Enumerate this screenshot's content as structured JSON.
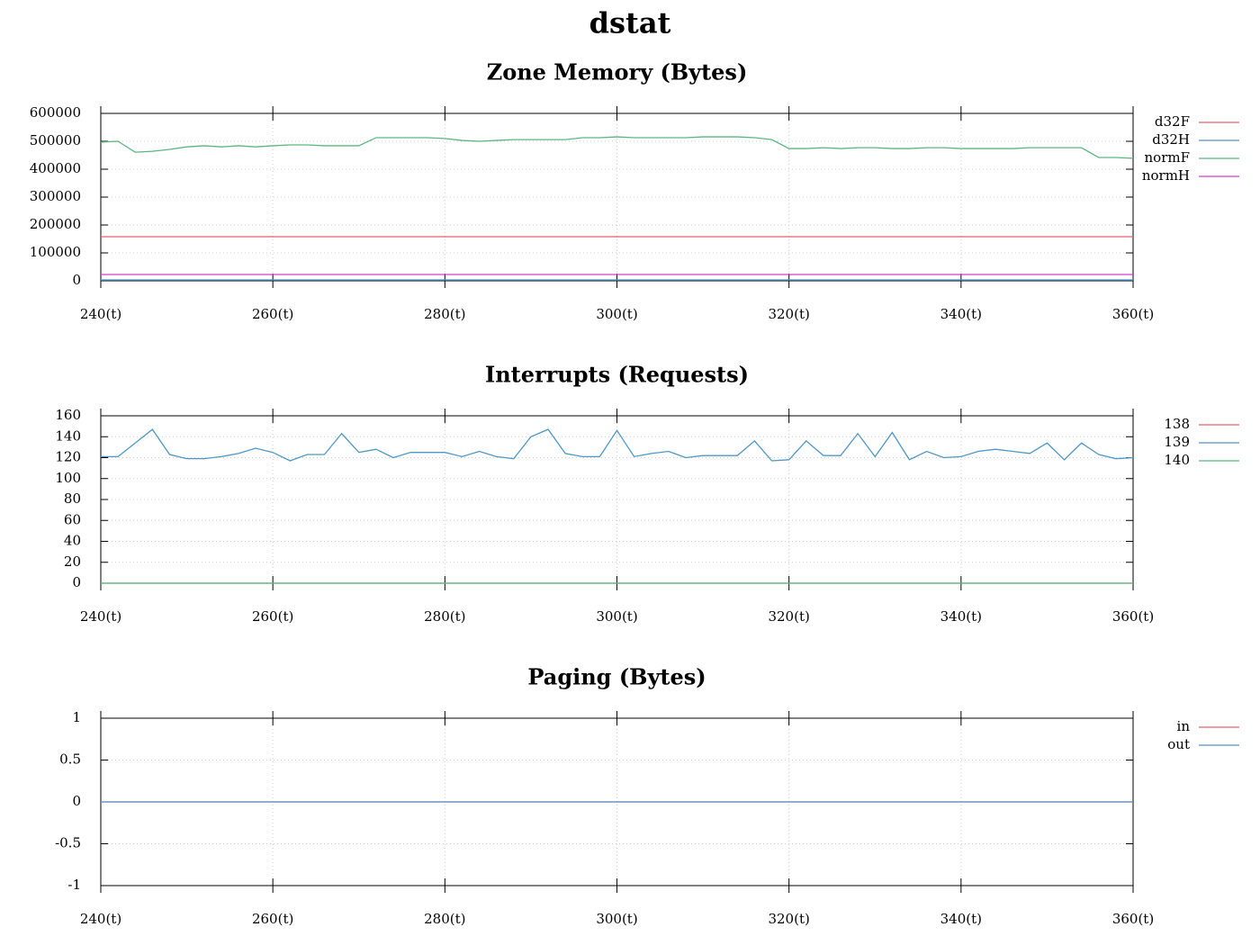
{
  "title": "dstat",
  "chart_data": [
    {
      "type": "line",
      "title": "Zone Memory (Bytes)",
      "x": [
        240,
        242,
        244,
        246,
        248,
        250,
        252,
        254,
        256,
        258,
        260,
        262,
        264,
        266,
        268,
        270,
        272,
        274,
        276,
        278,
        280,
        282,
        284,
        286,
        288,
        290,
        292,
        294,
        296,
        298,
        300,
        302,
        304,
        306,
        308,
        310,
        312,
        314,
        316,
        318,
        320,
        322,
        324,
        326,
        328,
        330,
        332,
        334,
        336,
        338,
        340,
        342,
        344,
        346,
        348,
        350,
        352,
        354,
        356,
        358,
        360
      ],
      "xlim": [
        240,
        360
      ],
      "xticks": [
        {
          "value": 240,
          "label": "240(t)"
        },
        {
          "value": 260,
          "label": "260(t)"
        },
        {
          "value": 280,
          "label": "280(t)"
        },
        {
          "value": 300,
          "label": "300(t)"
        },
        {
          "value": 320,
          "label": "320(t)"
        },
        {
          "value": 340,
          "label": "340(t)"
        },
        {
          "value": 360,
          "label": "360(t)"
        }
      ],
      "ylim": [
        0,
        600000
      ],
      "yticks": [
        0,
        100000,
        200000,
        300000,
        400000,
        500000,
        600000
      ],
      "grid": true,
      "legend": "right",
      "series": [
        {
          "name": "d32F",
          "color": "#e0606e",
          "values": [
            158000,
            158000,
            158000,
            158000,
            158000,
            158000,
            158000,
            158000,
            158000,
            158000,
            158000,
            158000,
            158000,
            158000,
            158000,
            158000,
            158000,
            158000,
            158000,
            158000,
            158000,
            158000,
            158000,
            158000,
            158000,
            158000,
            158000,
            158000,
            158000,
            158000,
            158000,
            158000,
            158000,
            158000,
            158000,
            158000,
            158000,
            158000,
            158000,
            158000,
            158000,
            158000,
            158000,
            158000,
            158000,
            158000,
            158000,
            158000,
            158000,
            158000,
            158000,
            158000,
            158000,
            158000,
            158000,
            158000,
            158000,
            158000,
            158000,
            158000,
            158000
          ]
        },
        {
          "name": "d32H",
          "color": "#4f97c6",
          "values": [
            3000,
            3000,
            3000,
            3000,
            3000,
            3000,
            3000,
            3000,
            3000,
            3000,
            3000,
            3000,
            3000,
            3000,
            3000,
            3000,
            3000,
            3000,
            3000,
            3000,
            3000,
            3000,
            3000,
            3000,
            3000,
            3000,
            3000,
            3000,
            3000,
            3000,
            3000,
            3000,
            3000,
            3000,
            3000,
            3000,
            3000,
            3000,
            3000,
            3000,
            3000,
            3000,
            3000,
            3000,
            3000,
            3000,
            3000,
            3000,
            3000,
            3000,
            3000,
            3000,
            3000,
            3000,
            3000,
            3000,
            3000,
            3000,
            3000,
            3000,
            3000
          ]
        },
        {
          "name": "normF",
          "color": "#5bb77e",
          "values": [
            497000,
            500000,
            461000,
            464000,
            471000,
            480000,
            484000,
            480000,
            484000,
            480000,
            484000,
            487000,
            487000,
            484000,
            484000,
            484000,
            513000,
            513000,
            513000,
            513000,
            510000,
            503000,
            500000,
            503000,
            506000,
            506000,
            506000,
            506000,
            513000,
            513000,
            516000,
            513000,
            513000,
            513000,
            513000,
            516000,
            516000,
            516000,
            513000,
            506000,
            474000,
            474000,
            477000,
            474000,
            477000,
            477000,
            474000,
            474000,
            477000,
            477000,
            474000,
            474000,
            474000,
            474000,
            477000,
            477000,
            477000,
            477000,
            442000,
            442000,
            439000
          ]
        },
        {
          "name": "normH",
          "color": "#d63ccb",
          "values": [
            22500,
            22500,
            22500,
            22500,
            22500,
            22500,
            22500,
            22500,
            22500,
            22500,
            22500,
            22500,
            22500,
            22500,
            22500,
            22500,
            22500,
            22500,
            22500,
            22500,
            22500,
            22500,
            22500,
            22500,
            22500,
            22500,
            22500,
            22500,
            22500,
            22500,
            22500,
            22500,
            22500,
            22500,
            22500,
            22500,
            22500,
            22500,
            22500,
            22500,
            22500,
            22500,
            22500,
            22500,
            22500,
            22500,
            22500,
            22500,
            22500,
            22500,
            22500,
            22500,
            22500,
            22500,
            22500,
            22500,
            22500,
            22500,
            22500,
            22500,
            22500
          ]
        }
      ]
    },
    {
      "type": "line",
      "title": "Interrupts (Requests)",
      "x": [
        240,
        242,
        244,
        246,
        248,
        250,
        252,
        254,
        256,
        258,
        260,
        262,
        264,
        266,
        268,
        270,
        272,
        274,
        276,
        278,
        280,
        282,
        284,
        286,
        288,
        290,
        292,
        294,
        296,
        298,
        300,
        302,
        304,
        306,
        308,
        310,
        312,
        314,
        316,
        318,
        320,
        322,
        324,
        326,
        328,
        330,
        332,
        334,
        336,
        338,
        340,
        342,
        344,
        346,
        348,
        350,
        352,
        354,
        356,
        358,
        360
      ],
      "xlim": [
        240,
        360
      ],
      "xticks": [
        {
          "value": 240,
          "label": "240(t)"
        },
        {
          "value": 260,
          "label": "260(t)"
        },
        {
          "value": 280,
          "label": "280(t)"
        },
        {
          "value": 300,
          "label": "300(t)"
        },
        {
          "value": 320,
          "label": "320(t)"
        },
        {
          "value": 340,
          "label": "340(t)"
        },
        {
          "value": 360,
          "label": "360(t)"
        }
      ],
      "ylim": [
        0,
        160
      ],
      "yticks": [
        0,
        20,
        40,
        60,
        80,
        100,
        120,
        140,
        160
      ],
      "grid": true,
      "legend": "right",
      "series": [
        {
          "name": "138",
          "color": "#e0606e",
          "values": [
            0,
            0,
            0,
            0,
            0,
            0,
            0,
            0,
            0,
            0,
            0,
            0,
            0,
            0,
            0,
            0,
            0,
            0,
            0,
            0,
            0,
            0,
            0,
            0,
            0,
            0,
            0,
            0,
            0,
            0,
            0,
            0,
            0,
            0,
            0,
            0,
            0,
            0,
            0,
            0,
            0,
            0,
            0,
            0,
            0,
            0,
            0,
            0,
            0,
            0,
            0,
            0,
            0,
            0,
            0,
            0,
            0,
            0,
            0,
            0,
            0
          ]
        },
        {
          "name": "139",
          "color": "#4f97c6",
          "values": [
            121,
            121,
            134,
            147,
            123,
            119,
            119,
            121,
            124,
            129,
            125,
            117,
            123,
            123,
            143,
            125,
            128,
            120,
            125,
            125,
            125,
            121,
            126,
            121,
            119,
            140,
            147,
            124,
            121,
            121,
            146,
            121,
            124,
            126,
            120,
            122,
            122,
            122,
            136,
            117,
            118,
            136,
            122,
            122,
            143,
            121,
            144,
            118,
            126,
            120,
            121,
            126,
            128,
            126,
            124,
            134,
            118,
            134,
            123,
            119,
            120
          ]
        },
        {
          "name": "140",
          "color": "#5bb77e",
          "values": [
            0,
            0,
            0,
            0,
            0,
            0,
            0,
            0,
            0,
            0,
            0,
            0,
            0,
            0,
            0,
            0,
            0,
            0,
            0,
            0,
            0,
            0,
            0,
            0,
            0,
            0,
            0,
            0,
            0,
            0,
            0,
            0,
            0,
            0,
            0,
            0,
            0,
            0,
            0,
            0,
            0,
            0,
            0,
            0,
            0,
            0,
            0,
            0,
            0,
            0,
            0,
            0,
            0,
            0,
            0,
            0,
            0,
            0,
            0,
            0,
            0
          ]
        }
      ]
    },
    {
      "type": "line",
      "title": "Paging (Bytes)",
      "x": [
        240,
        242,
        244,
        246,
        248,
        250,
        252,
        254,
        256,
        258,
        260,
        262,
        264,
        266,
        268,
        270,
        272,
        274,
        276,
        278,
        280,
        282,
        284,
        286,
        288,
        290,
        292,
        294,
        296,
        298,
        300,
        302,
        304,
        306,
        308,
        310,
        312,
        314,
        316,
        318,
        320,
        322,
        324,
        326,
        328,
        330,
        332,
        334,
        336,
        338,
        340,
        342,
        344,
        346,
        348,
        350,
        352,
        354,
        356,
        358,
        360
      ],
      "xlim": [
        240,
        360
      ],
      "xticks": [
        {
          "value": 240,
          "label": "240(t)"
        },
        {
          "value": 260,
          "label": "260(t)"
        },
        {
          "value": 280,
          "label": "280(t)"
        },
        {
          "value": 300,
          "label": "300(t)"
        },
        {
          "value": 320,
          "label": "320(t)"
        },
        {
          "value": 340,
          "label": "340(t)"
        },
        {
          "value": 360,
          "label": "360(t)"
        }
      ],
      "ylim": [
        -1,
        1
      ],
      "yticks": [
        -1,
        -0.5,
        0,
        0.5,
        1
      ],
      "grid": true,
      "legend": "right",
      "series": [
        {
          "name": "in",
          "color": "#e0606e",
          "values": [
            0,
            0,
            0,
            0,
            0,
            0,
            0,
            0,
            0,
            0,
            0,
            0,
            0,
            0,
            0,
            0,
            0,
            0,
            0,
            0,
            0,
            0,
            0,
            0,
            0,
            0,
            0,
            0,
            0,
            0,
            0,
            0,
            0,
            0,
            0,
            0,
            0,
            0,
            0,
            0,
            0,
            0,
            0,
            0,
            0,
            0,
            0,
            0,
            0,
            0,
            0,
            0,
            0,
            0,
            0,
            0,
            0,
            0,
            0,
            0,
            0
          ]
        },
        {
          "name": "out",
          "color": "#4f97c6",
          "values": [
            0,
            0,
            0,
            0,
            0,
            0,
            0,
            0,
            0,
            0,
            0,
            0,
            0,
            0,
            0,
            0,
            0,
            0,
            0,
            0,
            0,
            0,
            0,
            0,
            0,
            0,
            0,
            0,
            0,
            0,
            0,
            0,
            0,
            0,
            0,
            0,
            0,
            0,
            0,
            0,
            0,
            0,
            0,
            0,
            0,
            0,
            0,
            0,
            0,
            0,
            0,
            0,
            0,
            0,
            0,
            0,
            0,
            0,
            0,
            0,
            0
          ]
        }
      ]
    }
  ]
}
